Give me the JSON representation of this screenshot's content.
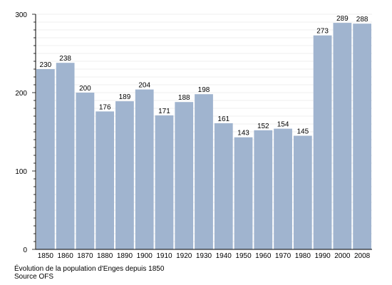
{
  "chart_data": {
    "type": "bar",
    "categories": [
      "1850",
      "1860",
      "1870",
      "1880",
      "1890",
      "1900",
      "1910",
      "1920",
      "1930",
      "1940",
      "1950",
      "1960",
      "1970",
      "1980",
      "1990",
      "2000",
      "2008"
    ],
    "values": [
      230,
      238,
      200,
      176,
      189,
      204,
      171,
      188,
      198,
      161,
      143,
      152,
      154,
      145,
      273,
      289,
      288
    ],
    "title": "",
    "xlabel": "",
    "ylabel": "",
    "ylim": [
      0,
      300
    ],
    "yticks": [
      0,
      100,
      200,
      300
    ],
    "grid": true,
    "bar_color": "#a0b4cf",
    "grid_color": "#e0e0e0"
  },
  "caption": {
    "title": "Évolution de la population d'Enges depuis 1850",
    "source": "Source OFS"
  }
}
